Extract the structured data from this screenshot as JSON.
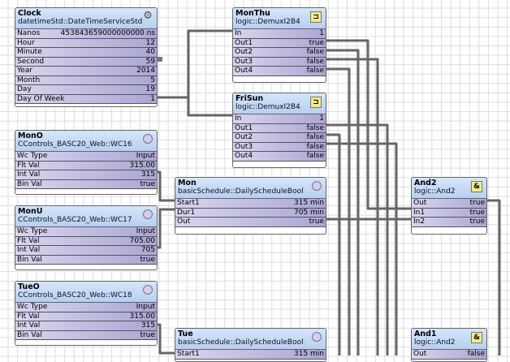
{
  "blocks": [
    {
      "id": "clock",
      "title": "Clock",
      "type": "datetimeStd::DateTimeServiceStd",
      "icon": "gear-icon",
      "rows": [
        [
          "Nanos",
          "453843659000000000 ns"
        ],
        [
          "Hour",
          "12"
        ],
        [
          "Minute",
          "40"
        ],
        [
          "Second",
          "59"
        ],
        [
          "Year",
          "2014"
        ],
        [
          "Month",
          "5"
        ],
        [
          "Day",
          "19"
        ],
        [
          "Day Of Week",
          "1"
        ]
      ]
    },
    {
      "id": "monthu",
      "title": "MonThu",
      "type": "logic::DemuxI2B4",
      "icon": "demux-icon",
      "rows": [
        [
          "In",
          "1"
        ],
        [
          "Out1",
          "true"
        ],
        [
          "Out2",
          "false"
        ],
        [
          "Out3",
          "false"
        ],
        [
          "Out4",
          "false"
        ]
      ]
    },
    {
      "id": "frisun",
      "title": "FriSun",
      "type": "logic::DemuxI2B4",
      "icon": "demux-icon",
      "rows": [
        [
          "In",
          "1"
        ],
        [
          "Out1",
          "false"
        ],
        [
          "Out2",
          "false"
        ],
        [
          "Out3",
          "false"
        ],
        [
          "Out4",
          "false"
        ]
      ]
    },
    {
      "id": "mono",
      "title": "MonO",
      "type": "CControls_BASC20_Web::WC16",
      "icon": "circle-icon",
      "rows": [
        [
          "Wc Type",
          "Input"
        ],
        [
          "Flt Val",
          "315.00"
        ],
        [
          "Int Val",
          "315"
        ],
        [
          "Bin Val",
          "true"
        ]
      ]
    },
    {
      "id": "monu",
      "title": "MonU",
      "type": "CControls_BASC20_Web::WC17",
      "icon": "circle-icon",
      "rows": [
        [
          "Wc Type",
          "Input"
        ],
        [
          "Flt Val",
          "705.00"
        ],
        [
          "Int Val",
          "705"
        ],
        [
          "Bin Val",
          "true"
        ]
      ]
    },
    {
      "id": "tueo",
      "title": "TueO",
      "type": "CControls_BASC20_Web::WC18",
      "icon": "circle-icon",
      "rows": [
        [
          "Wc Type",
          "Input"
        ],
        [
          "Flt Val",
          "315.00"
        ],
        [
          "Int Val",
          "315"
        ],
        [
          "Bin Val",
          "true"
        ]
      ]
    },
    {
      "id": "mon",
      "title": "Mon",
      "type": "basicSchedule::DailyScheduleBool",
      "icon": "circle-icon",
      "rows": [
        [
          "Start1",
          "315 min"
        ],
        [
          "Dur1",
          "705 min"
        ],
        [
          "Out",
          "true"
        ]
      ]
    },
    {
      "id": "tue",
      "title": "Tue",
      "type": "basicSchedule::DailyScheduleBool",
      "icon": "circle-icon",
      "rows": [
        [
          "Start1",
          "315 min"
        ]
      ]
    },
    {
      "id": "and2",
      "title": "And2",
      "type": "logic::And2",
      "icon": "and-icon",
      "rows": [
        [
          "Out",
          "true"
        ],
        [
          "In1",
          "true"
        ],
        [
          "In2",
          "true"
        ]
      ]
    },
    {
      "id": "and1",
      "title": "And1",
      "type": "logic::And2",
      "icon": "and-icon",
      "rows": [
        [
          "Out",
          "false"
        ]
      ]
    }
  ],
  "colors": {
    "header": "#c4daf6",
    "row": "#b4b0dc",
    "wire": "#666666"
  }
}
